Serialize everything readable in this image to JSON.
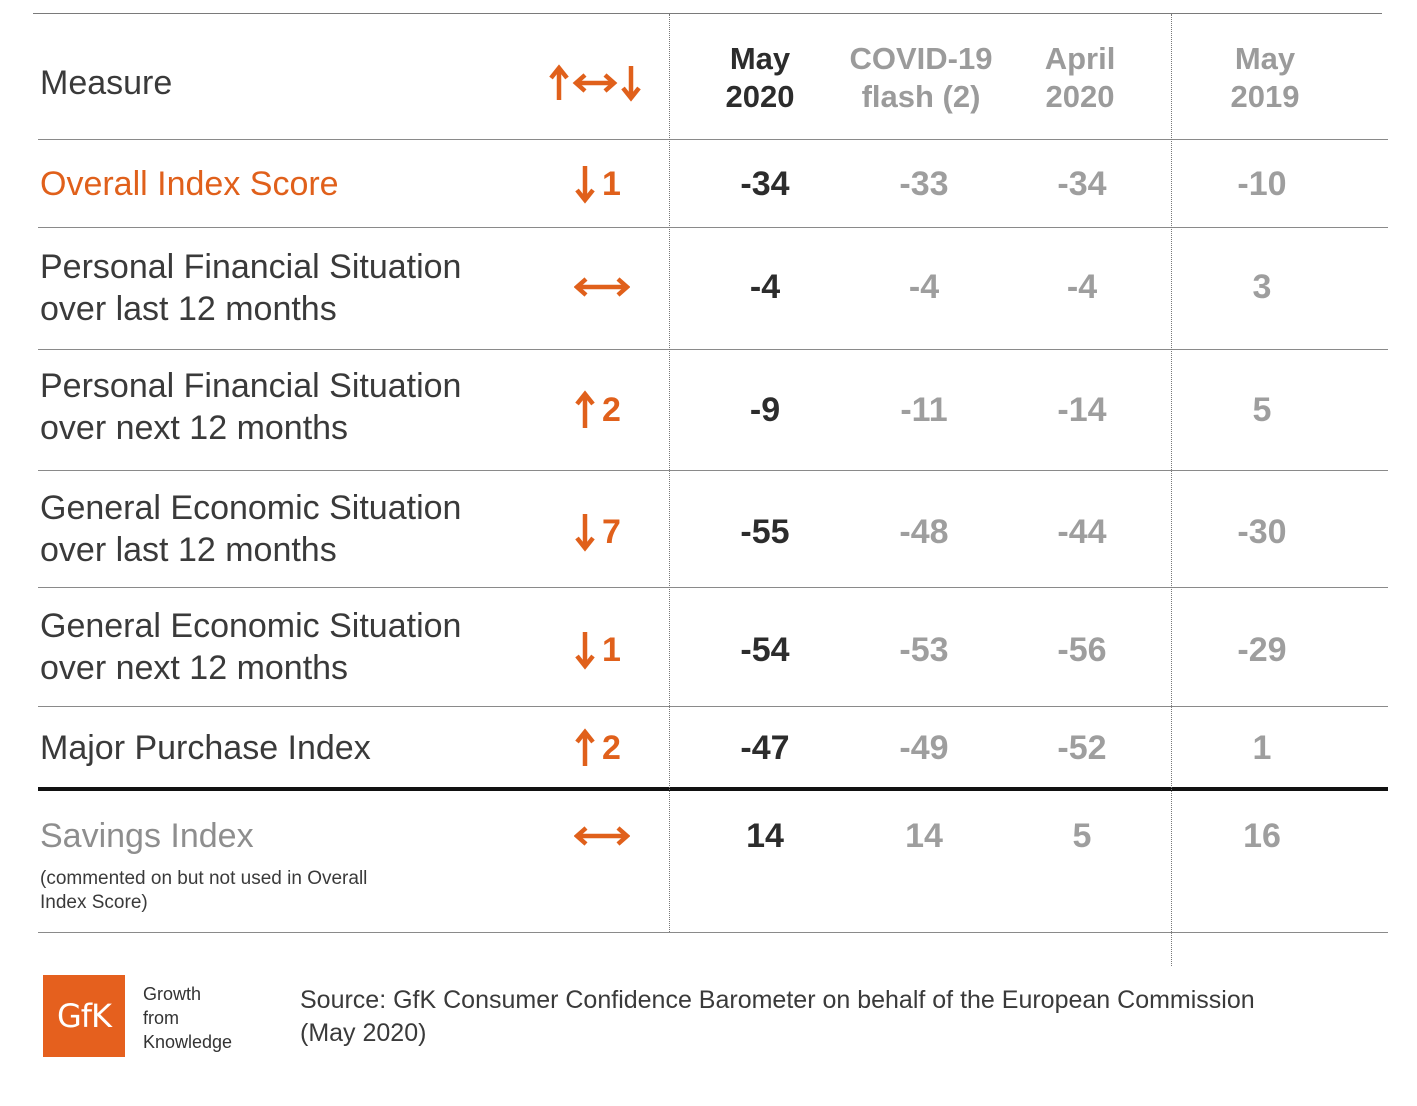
{
  "header": {
    "measure_label": "Measure",
    "col1": [
      "May",
      "2020"
    ],
    "col2": [
      "COVID-19",
      "flash (2)"
    ],
    "col3": [
      "April",
      "2020"
    ],
    "col4": [
      "May",
      "2019"
    ]
  },
  "rows": [
    {
      "measure": [
        "Overall Index Score"
      ],
      "direction": "down",
      "change": "1",
      "values": [
        "-34",
        "-33",
        "-34",
        "-10"
      ]
    },
    {
      "measure": [
        "Personal Financial Situation",
        "over last 12 months"
      ],
      "direction": "flat",
      "change": "",
      "values": [
        "-4",
        "-4",
        "-4",
        "3"
      ]
    },
    {
      "measure": [
        "Personal Financial Situation",
        "over next 12 months"
      ],
      "direction": "up",
      "change": "2",
      "values": [
        "-9",
        "-11",
        "-14",
        "5"
      ]
    },
    {
      "measure": [
        "General Economic Situation",
        "over last 12 months"
      ],
      "direction": "down",
      "change": "7",
      "values": [
        "-55",
        "-48",
        "-44",
        "-30"
      ]
    },
    {
      "measure": [
        "General Economic Situation",
        "over next 12 months"
      ],
      "direction": "down",
      "change": "1",
      "values": [
        "-54",
        "-53",
        "-56",
        "-29"
      ]
    },
    {
      "measure": [
        "Major Purchase Index"
      ],
      "direction": "up",
      "change": "2",
      "values": [
        "-47",
        "-49",
        "-52",
        "1"
      ]
    },
    {
      "measure": [
        "Savings Index"
      ],
      "note": "(commented on but not used in Overall Index Score)",
      "direction": "flat",
      "change": "",
      "values": [
        "14",
        "14",
        "5",
        "16"
      ]
    }
  ],
  "footer": {
    "logo_text": "GfK",
    "tagline": [
      "Growth",
      "from",
      "Knowledge"
    ],
    "source": [
      "Source: GfK Consumer Confidence Barometer on behalf of the European Commission",
      "(May 2020)"
    ]
  },
  "colors": {
    "accent": "#e0601b",
    "current": "#2c2c2c",
    "previous": "#9e9e9e"
  }
}
